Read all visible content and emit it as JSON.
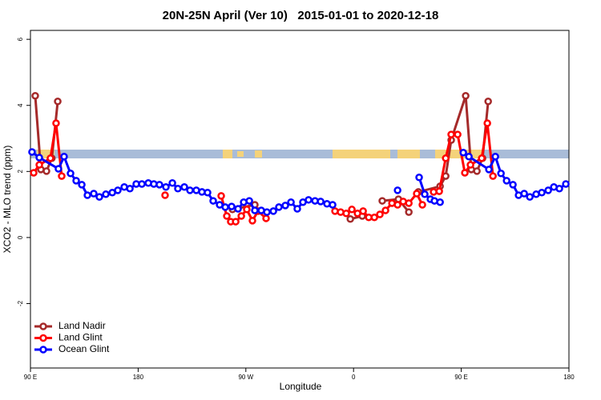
{
  "chart_data": {
    "type": "line",
    "title": "20N-25N April (Ver 10)   2015-01-01 to 2020-12-18",
    "x_label": "Longitude",
    "y_label": "XCO2 - MLO trend (ppm)",
    "xlim": [
      90,
      540
    ],
    "ylim": [
      -3.95,
      6.27
    ],
    "xticks": [
      {
        "value": 90,
        "label": "90 E"
      },
      180,
      {
        "value": 270,
        "label": "90 W"
      },
      {
        "value": 360,
        "label": "0"
      },
      {
        "value": 450,
        "label": "90 E"
      },
      {
        "value": 540,
        "label": "180"
      }
    ],
    "yticks": [
      -2,
      0,
      2,
      4,
      6
    ],
    "legend": "bottom-left",
    "series": [
      {
        "name": "Land Nadir",
        "color": "#a52a2a",
        "x": [
          94.0,
          98.7,
          103.4,
          107.9,
          112.8,
          null,
          258.8,
          277.5,
          null,
          357.3,
          367.3,
          null,
          384.0,
          397.5,
          406.2,
          null,
          414.2,
          432.3,
          437.0,
          441.6,
          453.7,
          458.4,
          463.1,
          467.8,
          472.5
        ],
        "values": [
          4.29,
          2.06,
          2.01,
          2.4,
          4.12,
          null,
          0.85,
          0.99,
          null,
          0.56,
          0.65,
          null,
          1.11,
          1.16,
          0.77,
          null,
          1.38,
          1.55,
          1.86,
          2.95,
          4.29,
          2.06,
          2.01,
          2.4,
          4.12
        ]
      },
      {
        "name": "Land Glint",
        "color": "#ff0000",
        "x": [
          92.7,
          97.4,
          106.7,
          111.4,
          116.1,
          null,
          202.5,
          null,
          249.4,
          254.1,
          257.4,
          261.5,
          266.2,
          270.8,
          275.5,
          280.2,
          286.9,
          null,
          344.5,
          349.2,
          353.9,
          358.6,
          363.3,
          368.0,
          372.7,
          377.4,
          382.0,
          386.7,
          392.1,
          396.8,
          401.5,
          406.2,
          412.8,
          417.5,
          null,
          426.9,
          431.6,
          437.0,
          441.6,
          447.0,
          453.0,
          457.7,
          467.1,
          471.8,
          476.5
        ],
        "values": [
          1.96,
          2.2,
          2.4,
          3.46,
          1.86,
          null,
          1.28,
          null,
          1.26,
          0.65,
          0.48,
          0.48,
          0.65,
          0.85,
          0.51,
          0.8,
          0.58,
          null,
          0.8,
          0.77,
          0.73,
          0.85,
          0.73,
          0.8,
          0.61,
          0.61,
          0.7,
          0.82,
          1.04,
          0.99,
          1.09,
          1.04,
          1.33,
          0.99,
          null,
          1.38,
          1.4,
          2.4,
          3.12,
          3.12,
          1.96,
          2.2,
          2.4,
          3.46,
          1.86
        ]
      },
      {
        "name": "Ocean Glint",
        "color": "#0000ff",
        "x": [
          91.3,
          97.4,
          113.4,
          118.1,
          123.5,
          128.2,
          132.9,
          137.6,
          142.9,
          147.6,
          153.0,
          158.4,
          163.0,
          168.4,
          173.1,
          178.4,
          183.1,
          188.5,
          193.1,
          197.8,
          203.2,
          208.6,
          213.2,
          218.6,
          223.3,
          228.6,
          233.3,
          238.0,
          242.7,
          248.1,
          252.8,
          258.1,
          263.5,
          268.2,
          272.9,
          277.5,
          282.9,
          287.6,
          293.0,
          297.6,
          303.0,
          307.7,
          313.0,
          317.7,
          322.4,
          327.8,
          332.5,
          337.8,
          342.5,
          null,
          396.8,
          null,
          414.8,
          419.5,
          424.2,
          427.6,
          432.3,
          null,
          451.7,
          456.4,
          473.1,
          478.5,
          483.2,
          487.9,
          493.2,
          497.9,
          502.6,
          507.3,
          512.6,
          517.3,
          522.7,
          527.4,
          532.0,
          537.4
        ],
        "values": [
          2.59,
          2.42,
          2.08,
          2.45,
          1.94,
          1.72,
          1.6,
          1.28,
          1.33,
          1.23,
          1.31,
          1.36,
          1.43,
          1.53,
          1.48,
          1.62,
          1.62,
          1.65,
          1.62,
          1.6,
          1.53,
          1.65,
          1.48,
          1.53,
          1.43,
          1.43,
          1.38,
          1.36,
          1.11,
          0.99,
          0.92,
          0.94,
          0.87,
          1.07,
          1.11,
          0.82,
          0.82,
          0.77,
          0.8,
          0.92,
          0.97,
          1.07,
          0.87,
          1.07,
          1.14,
          1.11,
          1.09,
          1.02,
          0.99,
          null,
          1.43,
          null,
          1.82,
          1.31,
          1.16,
          1.11,
          1.07,
          null,
          2.57,
          2.45,
          2.06,
          2.45,
          1.94,
          1.72,
          1.6,
          1.28,
          1.33,
          1.23,
          1.31,
          1.36,
          1.43,
          1.53,
          1.48,
          1.62
        ]
      }
    ]
  }
}
